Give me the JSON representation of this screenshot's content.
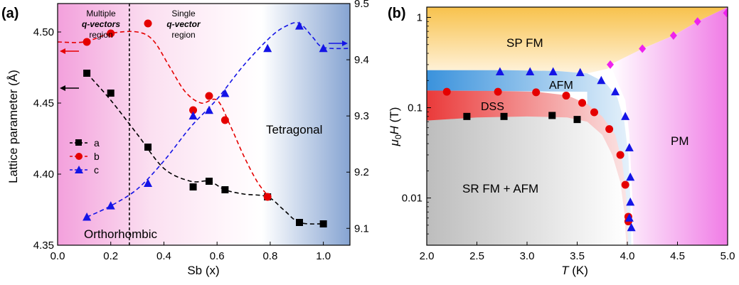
{
  "chart_data": [
    {
      "panel_label": "(a)",
      "type": "line",
      "xlabel": "Sb (x)",
      "ylabel": "Lattice parameter (Å)",
      "xlim": [
        0.0,
        1.1
      ],
      "ylim": [
        4.35,
        4.52
      ],
      "y2lim": [
        9.07,
        9.5
      ],
      "xticks": [
        "0.0",
        "0.2",
        "0.4",
        "0.6",
        "0.8",
        "1.0"
      ],
      "yticks": [
        "4.35",
        "4.40",
        "4.45",
        "4.50"
      ],
      "y2ticks": [
        "9.1",
        "9.2",
        "9.3",
        "9.4",
        "9.5"
      ],
      "series": [
        {
          "name": "a",
          "axis": "left",
          "marker": "square",
          "color": "#000000",
          "x": [
            0.11,
            0.2,
            0.34,
            0.51,
            0.57,
            0.63,
            0.79,
            0.91,
            1.0
          ],
          "y": [
            4.471,
            4.457,
            4.419,
            4.391,
            4.395,
            4.389,
            4.384,
            4.366,
            4.365
          ]
        },
        {
          "name": "b",
          "axis": "left",
          "marker": "circle",
          "color": "#e50000",
          "x": [
            0.11,
            0.2,
            0.34,
            0.51,
            0.57,
            0.63,
            0.79
          ],
          "y": [
            4.493,
            4.499,
            4.506,
            4.445,
            4.455,
            4.438,
            4.384
          ]
        },
        {
          "name": "c",
          "axis": "right",
          "marker": "triangle",
          "color": "#1414e6",
          "x": [
            0.11,
            0.2,
            0.34,
            0.51,
            0.57,
            0.63,
            0.79,
            0.91,
            1.0
          ],
          "y": [
            9.12,
            9.14,
            9.18,
            9.3,
            9.31,
            9.34,
            9.42,
            9.46,
            9.42
          ]
        }
      ],
      "trend_lines": {
        "a": {
          "x": [
            0.11,
            0.2,
            0.3,
            0.4,
            0.5,
            0.57,
            0.63,
            0.7,
            0.79,
            0.85,
            0.91,
            1.0
          ],
          "y": [
            4.471,
            4.452,
            4.428,
            4.404,
            4.395,
            4.395,
            4.389,
            4.386,
            4.384,
            4.375,
            4.366,
            4.365
          ]
        },
        "b": {
          "x": [
            0.0,
            0.1,
            0.2,
            0.3,
            0.36,
            0.42,
            0.48,
            0.54,
            0.6,
            0.65,
            0.7,
            0.75,
            0.79
          ],
          "y": [
            4.493,
            4.493,
            4.499,
            4.5,
            4.494,
            4.476,
            4.458,
            4.45,
            4.452,
            4.434,
            4.413,
            4.395,
            4.385
          ]
        },
        "c": {
          "x": [
            0.11,
            0.2,
            0.3,
            0.4,
            0.5,
            0.6,
            0.7,
            0.8,
            0.86,
            0.91,
            0.96,
            1.0,
            1.1
          ],
          "y": [
            9.12,
            9.14,
            9.17,
            9.22,
            9.28,
            9.33,
            9.39,
            9.44,
            9.46,
            9.465,
            9.44,
            9.422,
            9.42
          ]
        }
      },
      "region_boundary_x": 0.27,
      "annotations": {
        "multi_region": [
          "Multiple",
          "q-vectors",
          "region"
        ],
        "single_region": [
          "Single",
          "q-vector",
          "region"
        ],
        "tetragonal": "Tetragonal",
        "orthorhombic": "Orthorhombic"
      },
      "legend_position": "left-middle"
    },
    {
      "panel_label": "(b)",
      "type": "scatter",
      "xlabel_italic": "T",
      "xlabel_rest": " (K)",
      "ylabel_mu": "μ",
      "ylabel_sub": "0",
      "ylabel_rest": " (T)",
      "xlim": [
        2.0,
        5.0
      ],
      "ylim": [
        0.003,
        1.3
      ],
      "yscale": "log",
      "xticks": [
        "2.0",
        "2.5",
        "3.0",
        "3.5",
        "4.0",
        "4.5",
        "5.0"
      ],
      "yticks": [
        "0.01",
        "0.1",
        "1"
      ],
      "series": [
        {
          "name": "black squares",
          "marker": "square",
          "color": "#000000",
          "x": [
            2.4,
            2.77,
            3.25,
            3.5
          ],
          "y": [
            0.08,
            0.08,
            0.082,
            0.074
          ]
        },
        {
          "name": "red circles",
          "marker": "circle",
          "color": "#e50000",
          "x": [
            2.2,
            2.71,
            3.09,
            3.39,
            3.55,
            3.67,
            3.82,
            3.93,
            3.98,
            4.01,
            4.01
          ],
          "y": [
            0.15,
            0.15,
            0.148,
            0.136,
            0.113,
            0.089,
            0.058,
            0.03,
            0.014,
            0.0055,
            0.0062
          ]
        },
        {
          "name": "blue triangles",
          "marker": "triangle",
          "color": "#1414e6",
          "x": [
            2.73,
            3.03,
            3.26,
            3.53,
            3.74,
            3.88,
            3.98,
            4.02,
            4.03,
            4.03,
            4.02,
            4.04
          ],
          "y": [
            0.25,
            0.25,
            0.25,
            0.245,
            0.2,
            0.15,
            0.08,
            0.036,
            0.017,
            0.009,
            0.006,
            0.0047
          ]
        },
        {
          "name": "magenta diamonds",
          "marker": "diamond",
          "color": "#ee22ee",
          "x": [
            3.83,
            4.15,
            4.46,
            4.7,
            4.99
          ],
          "y": [
            0.3,
            0.45,
            0.63,
            0.9,
            1.12
          ]
        }
      ],
      "annotations": {
        "sp_fm": "SP FM",
        "afm": "AFM",
        "dss": "DSS",
        "pm": "PM",
        "sr_fm_afm": "SR FM + AFM"
      }
    }
  ],
  "colors": {
    "orange_region": "#f8c24c",
    "blue_region": "#3a92dc",
    "red_region": "#ea3a3a",
    "gray_region": "#bdbdbd",
    "magenta_region": "#f07ce6",
    "pink_left": "#f3a0dc",
    "blue_right": "#86a4d2"
  }
}
